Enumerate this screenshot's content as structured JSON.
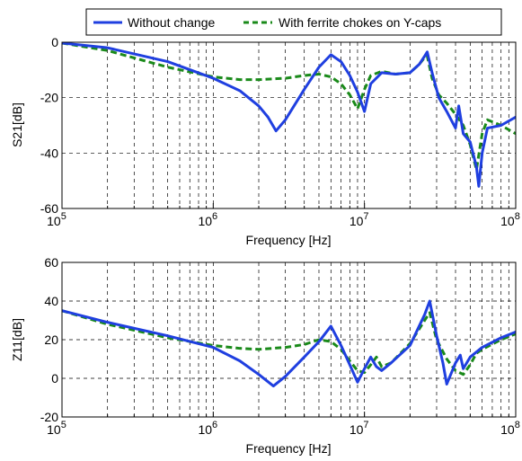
{
  "legend": {
    "location": "top-center",
    "entries": [
      {
        "label": "Without change",
        "color": "#1f3fe0",
        "style": "solid"
      },
      {
        "label": "With ferrite chokes on Y-caps",
        "color": "#1a8a1a",
        "style": "dashed"
      }
    ]
  },
  "chart_data": [
    {
      "type": "line",
      "xscale": "log",
      "xlim": [
        100000,
        100000000
      ],
      "ylim": [
        -60,
        0
      ],
      "xlabel": "Frequency [Hz]",
      "ylabel": "S21[dB]",
      "grid": true,
      "x_tick_labels": [
        {
          "base": "10",
          "exp": "5"
        },
        {
          "base": "10",
          "exp": "6"
        },
        {
          "base": "10",
          "exp": "7"
        },
        {
          "base": "10",
          "exp": "8"
        }
      ],
      "y_ticks": [
        "-60",
        "-40",
        "-20",
        "0"
      ],
      "series": [
        {
          "name": "Without change",
          "color": "#1f3fe0",
          "style": "solid",
          "x": [
            100000,
            200000,
            500000,
            1000000,
            1500000,
            2000000,
            2300000,
            2600000,
            3000000,
            4000000,
            5000000,
            6000000,
            7000000,
            8000000,
            9000000,
            10000000,
            11000000,
            13000000,
            16000000,
            20000000,
            23000000,
            25000000,
            26000000,
            28000000,
            31000000,
            35000000,
            40000000,
            42000000,
            45000000,
            50000000,
            55000000,
            57000000,
            60000000,
            65000000,
            80000000,
            100000000
          ],
          "y": [
            -0.3,
            -2,
            -7,
            -13,
            -17.5,
            -23,
            -27,
            -32,
            -28,
            -17,
            -9,
            -4.5,
            -7,
            -12,
            -18,
            -25,
            -15,
            -11,
            -11.5,
            -11,
            -8,
            -5,
            -3.5,
            -11,
            -20,
            -25,
            -31,
            -23,
            -33,
            -36,
            -45,
            -52,
            -40,
            -31,
            -30,
            -27
          ]
        },
        {
          "name": "With ferrite chokes on Y-caps",
          "color": "#1a8a1a",
          "style": "dashed",
          "x": [
            100000,
            200000,
            500000,
            1000000,
            1500000,
            2000000,
            3000000,
            4000000,
            5000000,
            6000000,
            7000000,
            8000000,
            9000000,
            10000000,
            11000000,
            13000000,
            16000000,
            20000000,
            23000000,
            25000000,
            26000000,
            28000000,
            31000000,
            35000000,
            40000000,
            45000000,
            50000000,
            55000000,
            60000000,
            65000000,
            80000000,
            100000000
          ],
          "y": [
            -0.3,
            -3,
            -9,
            -12.5,
            -13.5,
            -13.5,
            -13,
            -12,
            -11.5,
            -12.5,
            -15,
            -19,
            -24,
            -17,
            -12,
            -10.5,
            -11.5,
            -11,
            -8,
            -5.5,
            -5,
            -13,
            -19,
            -22,
            -26,
            -30,
            -37,
            -46,
            -33,
            -28,
            -30,
            -33
          ]
        }
      ]
    },
    {
      "type": "line",
      "xscale": "log",
      "xlim": [
        100000,
        100000000
      ],
      "ylim": [
        -20,
        60
      ],
      "xlabel": "Frequency [Hz]",
      "ylabel": "Z11[dB]",
      "grid": true,
      "x_tick_labels": [
        {
          "base": "10",
          "exp": "5"
        },
        {
          "base": "10",
          "exp": "6"
        },
        {
          "base": "10",
          "exp": "7"
        },
        {
          "base": "10",
          "exp": "8"
        }
      ],
      "y_ticks": [
        "-20",
        "0",
        "20",
        "40",
        "60"
      ],
      "series": [
        {
          "name": "Without change",
          "color": "#1f3fe0",
          "style": "solid",
          "x": [
            100000,
            200000,
            500000,
            1000000,
            1500000,
            2000000,
            2500000,
            3000000,
            4000000,
            5000000,
            6000000,
            7000000,
            8000000,
            9000000,
            10000000,
            11000000,
            12000000,
            13000000,
            15000000,
            20000000,
            25000000,
            27000000,
            30000000,
            33000000,
            35000000,
            40000000,
            43000000,
            45000000,
            50000000,
            60000000,
            80000000,
            100000000
          ],
          "y": [
            35,
            29,
            22,
            16,
            9,
            2,
            -4,
            1,
            11,
            19,
            27,
            17,
            7,
            -2,
            5,
            11,
            6,
            4,
            8,
            17,
            33,
            40,
            22,
            8,
            -3,
            8,
            12,
            5,
            11,
            16,
            21,
            24
          ]
        },
        {
          "name": "With ferrite chokes on Y-caps",
          "color": "#1a8a1a",
          "style": "dashed",
          "x": [
            100000,
            200000,
            500000,
            1000000,
            1500000,
            2000000,
            3000000,
            4000000,
            5000000,
            6000000,
            7000000,
            8000000,
            9000000,
            10000000,
            11000000,
            12000000,
            13000000,
            15000000,
            20000000,
            25000000,
            27000000,
            30000000,
            35000000,
            40000000,
            45000000,
            50000000,
            55000000,
            60000000,
            80000000,
            100000000
          ],
          "y": [
            35,
            28,
            21,
            17,
            15.5,
            15,
            16,
            17.5,
            20,
            19,
            15,
            9,
            4,
            3,
            7,
            11,
            6,
            8,
            18,
            30,
            34,
            20,
            10,
            4,
            2,
            7,
            13,
            15,
            20,
            23
          ]
        }
      ]
    }
  ]
}
